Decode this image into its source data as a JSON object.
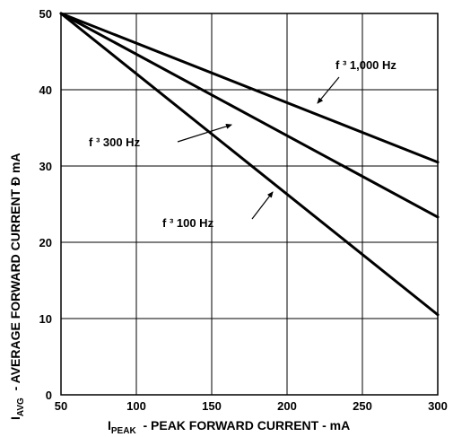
{
  "chart_data": {
    "type": "line",
    "xlim": [
      50,
      300
    ],
    "ylim": [
      0,
      50
    ],
    "x_ticks": [
      50,
      100,
      150,
      200,
      250,
      300
    ],
    "y_ticks": [
      0,
      10,
      20,
      30,
      40,
      50
    ],
    "x_tick_labels": [
      "50",
      "100",
      "150",
      "200",
      "250",
      "300"
    ],
    "y_tick_labels": [
      "0",
      "10",
      "20",
      "30",
      "40",
      "50"
    ],
    "grid": true,
    "xlabel": {
      "main": "I",
      "sub": "PEAK",
      "rest": "  - PEAK FORWARD CURRENT - mA"
    },
    "ylabel": {
      "main": "I",
      "sub": "AVG",
      "rest": "  - AVERAGE FORWARD CURRENT Ð mA"
    },
    "series": [
      {
        "name": "f ³  1,000 Hz",
        "x": [
          50,
          300
        ],
        "y": [
          50,
          30.5
        ]
      },
      {
        "name": "f ³  300 Hz",
        "x": [
          50,
          300
        ],
        "y": [
          50,
          23.3
        ]
      },
      {
        "name": "f ³  100 Hz",
        "x": [
          50,
          300
        ],
        "y": [
          50,
          10.5
        ]
      }
    ],
    "annotations": [
      {
        "text": "f ³  1,000 Hz",
        "arrow_to_series": 0
      },
      {
        "text": "f ³  300 Hz",
        "arrow_to_series": 1
      },
      {
        "text": "f ³  100 Hz",
        "arrow_to_series": 2
      }
    ]
  }
}
